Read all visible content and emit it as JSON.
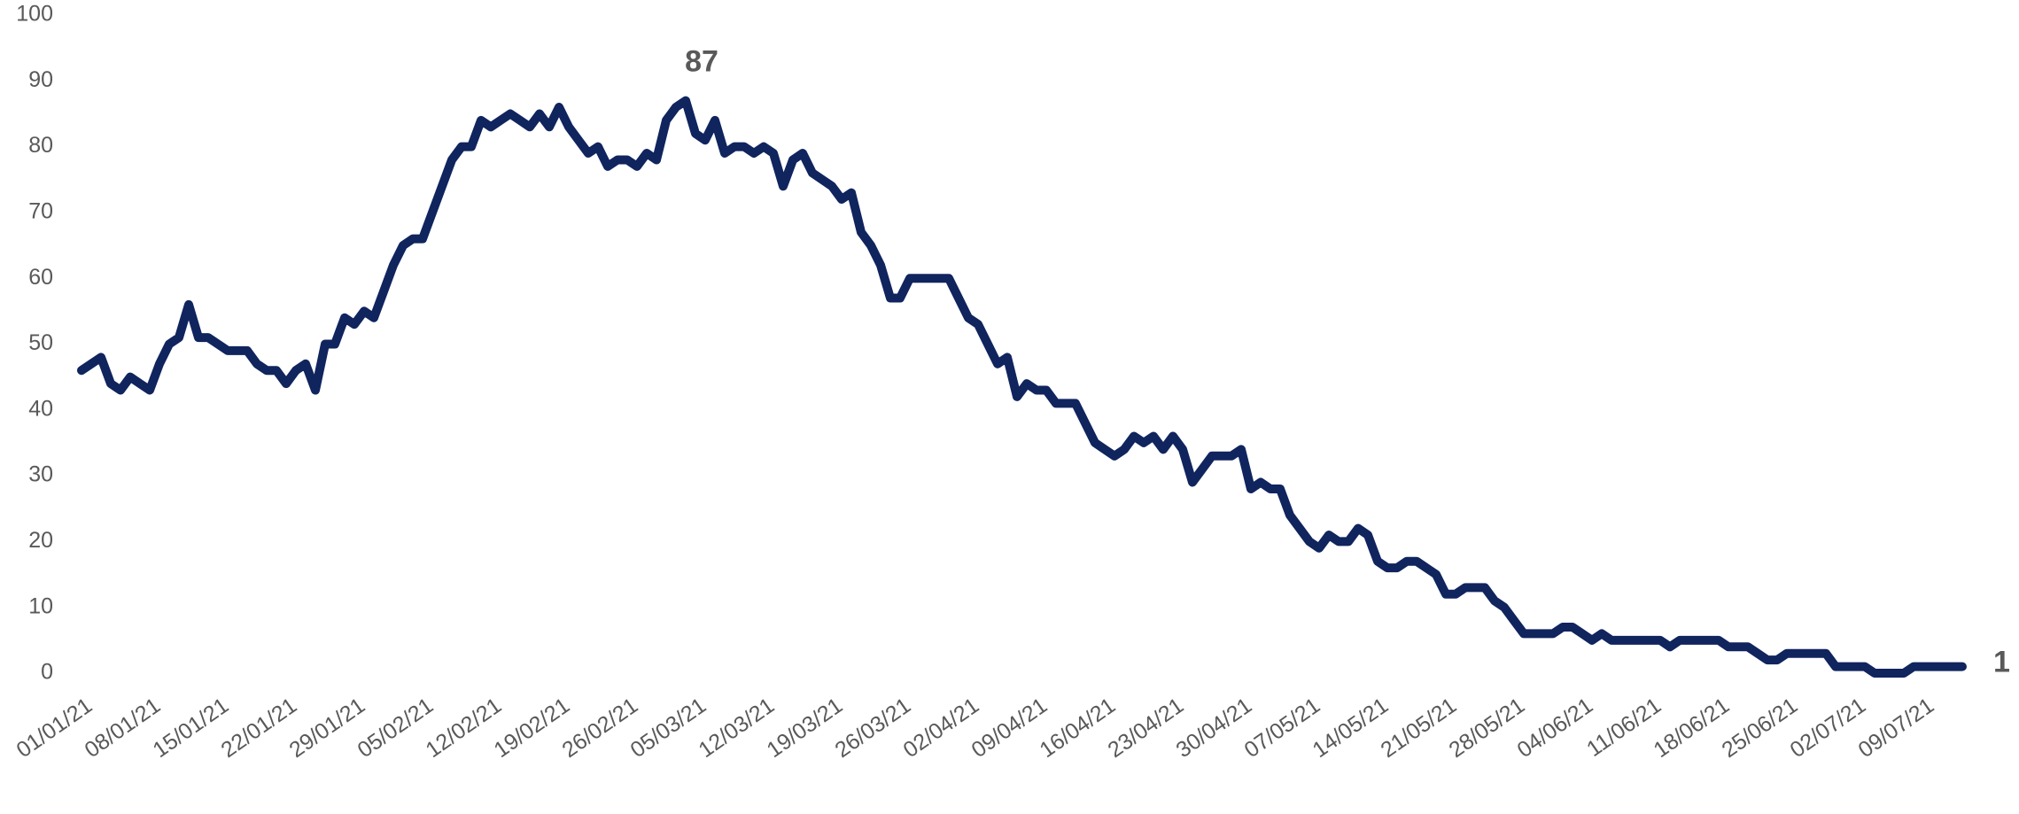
{
  "chart_data": {
    "type": "line",
    "categories": [
      "01/01/21",
      null,
      null,
      null,
      null,
      null,
      null,
      "08/01/21",
      null,
      null,
      null,
      null,
      null,
      null,
      "15/01/21",
      null,
      null,
      null,
      null,
      null,
      null,
      "22/01/21",
      null,
      null,
      null,
      null,
      null,
      null,
      "29/01/21",
      null,
      null,
      null,
      null,
      null,
      null,
      "05/02/21",
      null,
      null,
      null,
      null,
      null,
      null,
      "12/02/21",
      null,
      null,
      null,
      null,
      null,
      null,
      "19/02/21",
      null,
      null,
      null,
      null,
      null,
      null,
      "26/02/21",
      null,
      null,
      null,
      null,
      null,
      null,
      "05/03/21",
      null,
      null,
      null,
      null,
      null,
      null,
      "12/03/21",
      null,
      null,
      null,
      null,
      null,
      null,
      "19/03/21",
      null,
      null,
      null,
      null,
      null,
      null,
      "26/03/21",
      null,
      null,
      null,
      null,
      null,
      null,
      "02/04/21",
      null,
      null,
      null,
      null,
      null,
      null,
      "09/04/21",
      null,
      null,
      null,
      null,
      null,
      null,
      "16/04/21",
      null,
      null,
      null,
      null,
      null,
      null,
      "23/04/21",
      null,
      null,
      null,
      null,
      null,
      null,
      "30/04/21",
      null,
      null,
      null,
      null,
      null,
      null,
      "07/05/21",
      null,
      null,
      null,
      null,
      null,
      null,
      "14/05/21",
      null,
      null,
      null,
      null,
      null,
      null,
      "21/05/21",
      null,
      null,
      null,
      null,
      null,
      null,
      "28/05/21",
      null,
      null,
      null,
      null,
      null,
      null,
      "04/06/21",
      null,
      null,
      null,
      null,
      null,
      null,
      "11/06/21",
      null,
      null,
      null,
      null,
      null,
      null,
      "18/06/21",
      null,
      null,
      null,
      null,
      null,
      null,
      "25/06/21",
      null,
      null,
      null,
      null,
      null,
      null,
      "02/07/21",
      null,
      null,
      null,
      null,
      null,
      null,
      "09/07/21",
      null,
      null,
      null,
      null
    ],
    "values": [
      46,
      47,
      48,
      44,
      43,
      45,
      44,
      43,
      47,
      50,
      51,
      56,
      51,
      51,
      50,
      49,
      49,
      49,
      47,
      46,
      46,
      44,
      46,
      47,
      43,
      50,
      50,
      54,
      53,
      55,
      54,
      58,
      62,
      65,
      66,
      66,
      70,
      74,
      78,
      80,
      80,
      84,
      83,
      84,
      85,
      84,
      83,
      85,
      83,
      86,
      83,
      81,
      79,
      80,
      77,
      78,
      78,
      77,
      79,
      78,
      84,
      86,
      87,
      82,
      81,
      84,
      79,
      80,
      80,
      79,
      80,
      79,
      74,
      78,
      79,
      76,
      75,
      74,
      72,
      73,
      67,
      65,
      62,
      57,
      57,
      60,
      60,
      60,
      60,
      60,
      57,
      54,
      53,
      50,
      47,
      48,
      42,
      44,
      43,
      43,
      41,
      41,
      41,
      38,
      35,
      34,
      33,
      34,
      36,
      35,
      36,
      34,
      36,
      34,
      29,
      31,
      33,
      33,
      33,
      34,
      28,
      29,
      28,
      28,
      24,
      22,
      20,
      19,
      21,
      20,
      20,
      22,
      21,
      17,
      16,
      16,
      17,
      17,
      16,
      15,
      12,
      12,
      13,
      13,
      13,
      11,
      10,
      8,
      6,
      6,
      6,
      6,
      7,
      7,
      6,
      5,
      6,
      5,
      5,
      5,
      5,
      5,
      5,
      4,
      5,
      5,
      5,
      5,
      5,
      4,
      4,
      4,
      3,
      2,
      2,
      3,
      3,
      3,
      3,
      3,
      1,
      1,
      1,
      1,
      0,
      0,
      0,
      0,
      1,
      1,
      1,
      1,
      1,
      1
    ],
    "color": "#10245e",
    "ylim": [
      0,
      100
    ],
    "yticks": [
      0,
      10,
      20,
      30,
      40,
      50,
      60,
      70,
      80,
      90,
      100
    ],
    "grid": false
  }
}
